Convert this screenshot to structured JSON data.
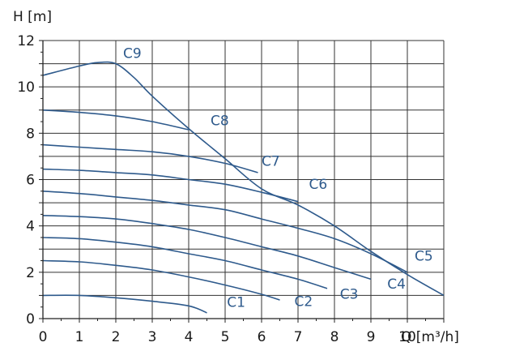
{
  "chart_data": {
    "type": "line",
    "title": "",
    "xlabel": "Q [m³/h]",
    "ylabel": "H [m]",
    "xlim": [
      0,
      11
    ],
    "ylim": [
      0,
      12
    ],
    "x_ticks": [
      0,
      1,
      2,
      3,
      4,
      5,
      6,
      7,
      8,
      9,
      10
    ],
    "y_ticks": [
      0,
      2,
      4,
      6,
      8,
      10,
      12
    ],
    "grid": true,
    "line_color": "#2e5a8c",
    "label_color": "#2e5a8c",
    "series": [
      {
        "name": "C1",
        "points": [
          [
            0,
            1.0
          ],
          [
            1,
            1.0
          ],
          [
            2,
            0.9
          ],
          [
            3,
            0.75
          ],
          [
            4,
            0.55
          ],
          [
            4.5,
            0.25
          ]
        ],
        "label_at": [
          5.05,
          0.5
        ]
      },
      {
        "name": "C2",
        "points": [
          [
            0,
            2.5
          ],
          [
            1,
            2.45
          ],
          [
            2,
            2.3
          ],
          [
            3,
            2.1
          ],
          [
            4,
            1.8
          ],
          [
            5,
            1.45
          ],
          [
            6,
            1.05
          ],
          [
            6.5,
            0.8
          ]
        ],
        "label_at": [
          6.9,
          0.55
        ]
      },
      {
        "name": "C3",
        "points": [
          [
            0,
            3.5
          ],
          [
            1,
            3.45
          ],
          [
            2,
            3.3
          ],
          [
            3,
            3.1
          ],
          [
            4,
            2.8
          ],
          [
            5,
            2.5
          ],
          [
            6,
            2.1
          ],
          [
            7,
            1.7
          ],
          [
            7.8,
            1.3
          ]
        ],
        "label_at": [
          8.15,
          0.85
        ]
      },
      {
        "name": "C4",
        "points": [
          [
            0,
            4.45
          ],
          [
            1,
            4.4
          ],
          [
            2,
            4.3
          ],
          [
            3,
            4.1
          ],
          [
            4,
            3.85
          ],
          [
            5,
            3.5
          ],
          [
            6,
            3.1
          ],
          [
            7,
            2.7
          ],
          [
            8,
            2.2
          ],
          [
            9,
            1.7
          ]
        ],
        "label_at": [
          9.45,
          1.3
        ]
      },
      {
        "name": "C5",
        "points": [
          [
            0,
            5.5
          ],
          [
            1,
            5.4
          ],
          [
            2,
            5.25
          ],
          [
            3,
            5.1
          ],
          [
            4,
            4.9
          ],
          [
            5,
            4.7
          ],
          [
            6,
            4.3
          ],
          [
            7,
            3.9
          ],
          [
            8,
            3.45
          ],
          [
            9,
            2.8
          ],
          [
            10,
            2.0
          ]
        ],
        "label_at": [
          10.2,
          2.5
        ]
      },
      {
        "name": "C6",
        "points": [
          [
            0,
            6.45
          ],
          [
            1,
            6.4
          ],
          [
            2,
            6.3
          ],
          [
            3,
            6.2
          ],
          [
            4,
            6.0
          ],
          [
            5,
            5.8
          ],
          [
            6,
            5.45
          ],
          [
            7,
            5.05
          ]
        ],
        "label_at": [
          7.3,
          5.6
        ]
      },
      {
        "name": "C7",
        "points": [
          [
            0,
            7.5
          ],
          [
            1,
            7.4
          ],
          [
            2,
            7.3
          ],
          [
            3,
            7.2
          ],
          [
            4,
            7.0
          ],
          [
            5,
            6.7
          ],
          [
            5.9,
            6.3
          ]
        ],
        "label_at": [
          6.0,
          6.6
        ]
      },
      {
        "name": "C8",
        "points": [
          [
            0,
            9.0
          ],
          [
            1,
            8.9
          ],
          [
            2,
            8.75
          ],
          [
            3,
            8.5
          ],
          [
            4,
            8.15
          ]
        ],
        "label_at": [
          4.6,
          8.35
        ]
      },
      {
        "name": "C9",
        "points": [
          [
            0,
            10.5
          ],
          [
            1,
            10.9
          ],
          [
            1.5,
            11.05
          ],
          [
            2,
            11.0
          ],
          [
            2.5,
            10.4
          ],
          [
            3,
            9.6
          ],
          [
            4,
            8.2
          ],
          [
            5,
            6.9
          ],
          [
            6,
            5.6
          ],
          [
            7,
            4.9
          ],
          [
            8,
            4.0
          ],
          [
            9,
            2.9
          ],
          [
            10,
            1.9
          ],
          [
            11,
            1.0
          ]
        ],
        "label_at": [
          2.2,
          11.25
        ]
      }
    ]
  }
}
